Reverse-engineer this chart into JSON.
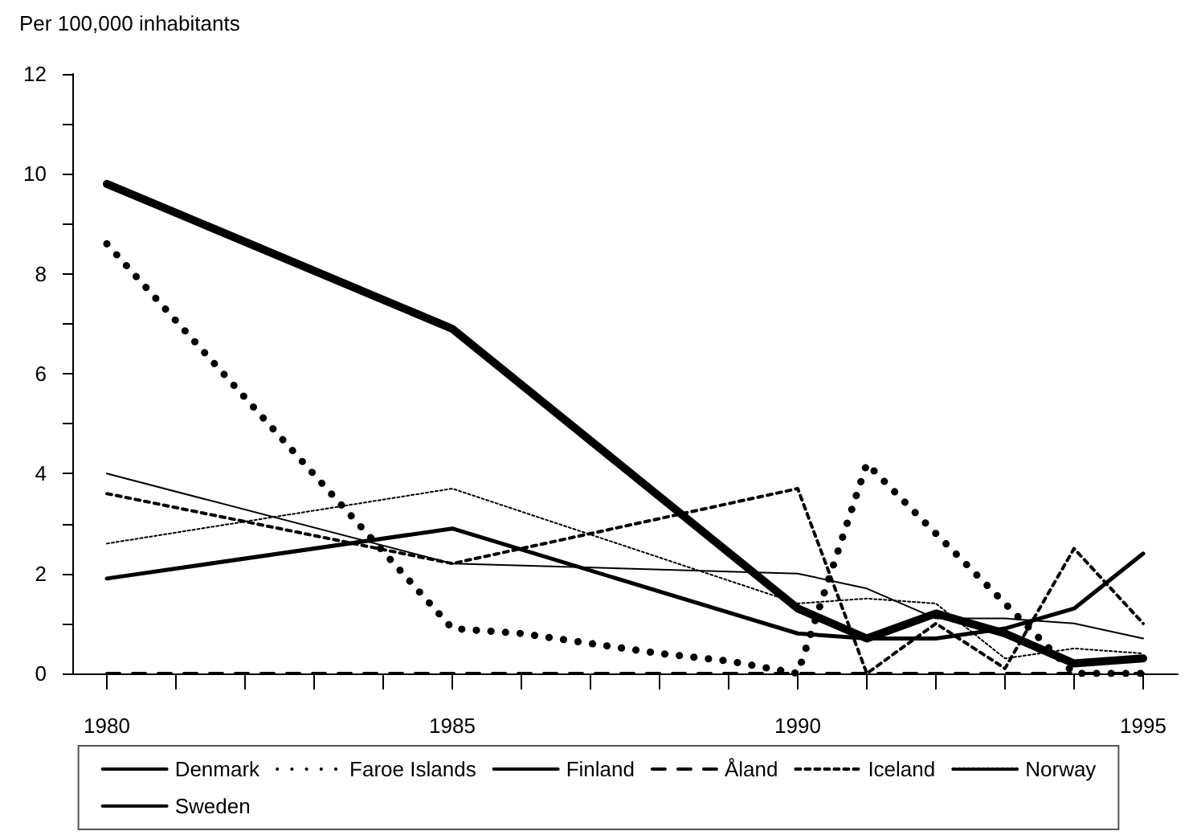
{
  "chart_data": {
    "type": "line",
    "ylabel": "Per 100,000 inhabitants",
    "xlim": [
      1979.5,
      1995.5
    ],
    "xticks": [
      1980,
      {
        "value": 1981,
        "label": null
      },
      {
        "value": 1982,
        "label": null
      },
      {
        "value": 1983,
        "label": null
      },
      {
        "value": 1984,
        "label": null
      },
      1985,
      {
        "value": 1986,
        "label": null
      },
      {
        "value": 1987,
        "label": null
      },
      {
        "value": 1988,
        "label": null
      },
      {
        "value": 1989,
        "label": null
      },
      1990,
      {
        "value": 1991,
        "label": null
      },
      {
        "value": 1992,
        "label": null
      },
      {
        "value": 1993,
        "label": null
      },
      {
        "value": 1994,
        "label": null
      },
      1995
    ],
    "ylim": [
      0,
      12
    ],
    "yticks": [
      0,
      {
        "value": 1,
        "label": null
      },
      2,
      {
        "value": 3,
        "label": null
      },
      4,
      {
        "value": 5,
        "label": null
      },
      6,
      {
        "value": 7,
        "label": null
      },
      8,
      {
        "value": 9,
        "label": null
      },
      10,
      {
        "value": 11,
        "label": null
      },
      12
    ],
    "grid": false,
    "legend": "bottom",
    "marker": "none",
    "x": [
      1980,
      1985,
      1990,
      1991,
      1992,
      1993,
      1994,
      1995
    ],
    "series": [
      {
        "name": "Denmark",
        "color": "#000000",
        "line_style": "solid",
        "values": [
          9.8,
          6.9,
          1.3,
          0.7,
          1.2,
          0.8,
          0.2,
          0.3
        ]
      },
      {
        "name": "Faroe Islands",
        "color": "#000000",
        "line_style": "dotted",
        "x": [
          1980,
          1985,
          1986,
          1987,
          1988,
          1989,
          1990,
          1991,
          1992,
          1993,
          1994,
          1995
        ],
        "values": [
          8.6,
          0.9,
          0.8,
          0.6,
          0.4,
          0.25,
          0,
          4.2,
          2.8,
          1.4,
          0,
          0
        ]
      },
      {
        "name": "Finland",
        "color": "#000000",
        "line_style": "solid",
        "values": [
          1.9,
          2.9,
          0.8,
          0.7,
          0.7,
          0.9,
          1.3,
          2.4
        ]
      },
      {
        "name": "Åland",
        "color": "#000000",
        "line_style": "dashed",
        "values": [
          0,
          0,
          0,
          0,
          0,
          0,
          0,
          0
        ]
      },
      {
        "name": "Iceland",
        "color": "#000000",
        "line_style": "dotted",
        "values": [
          3.6,
          2.2,
          3.7,
          0,
          1.0,
          0.1,
          2.5,
          1.0
        ]
      },
      {
        "name": "Norway",
        "color": "#000000",
        "line_style": "dotted",
        "values": [
          2.6,
          3.7,
          1.4,
          1.5,
          1.4,
          0.3,
          0.5,
          0.4
        ]
      },
      {
        "name": "Sweden",
        "color": "#000000",
        "line_style": "solid",
        "values": [
          4.0,
          2.2,
          2.0,
          1.7,
          1.1,
          1.1,
          1.0,
          0.7
        ]
      }
    ]
  }
}
